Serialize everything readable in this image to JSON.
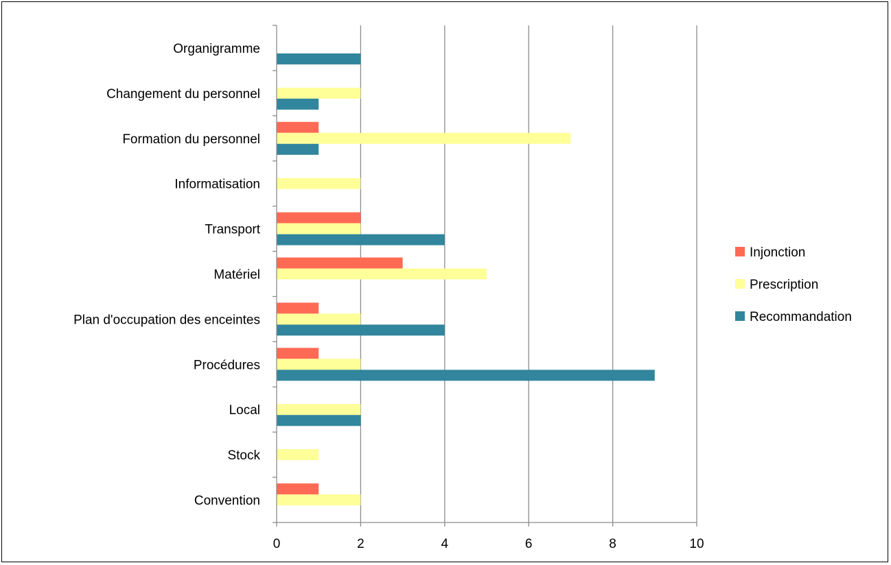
{
  "chart_data": {
    "type": "bar",
    "orientation": "horizontal",
    "categories": [
      "Convention",
      "Stock",
      "Local",
      "Procédures",
      "Plan d'occupation des enceintes",
      "Matériel",
      "Transport",
      "Informatisation",
      "Formation du personnel",
      "Changement du personnel",
      "Organigramme"
    ],
    "series": [
      {
        "name": "Injonction",
        "color": "#FF6A55",
        "values": [
          1,
          0,
          0,
          1,
          1,
          3,
          2,
          0,
          1,
          0,
          0
        ]
      },
      {
        "name": "Prescription",
        "color": "#FFFF99",
        "values": [
          2,
          1,
          2,
          2,
          2,
          5,
          2,
          2,
          7,
          2,
          0
        ]
      },
      {
        "name": "Recommandation",
        "color": "#31859C",
        "values": [
          0,
          0,
          2,
          9,
          4,
          0,
          4,
          0,
          1,
          1,
          2
        ]
      }
    ],
    "xlim": [
      0,
      10
    ],
    "x_ticks": [
      0,
      2,
      4,
      6,
      8,
      10
    ],
    "grid": "vertical",
    "legend_position": "right",
    "title": "",
    "xlabel": "",
    "ylabel": ""
  }
}
